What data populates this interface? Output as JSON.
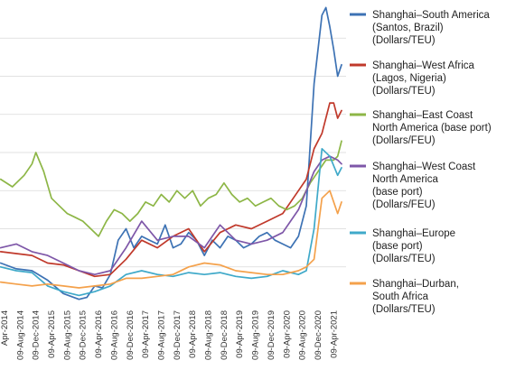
{
  "chart_data": {
    "type": "line",
    "title": "",
    "xlabel": "",
    "ylabel": "",
    "grid": true,
    "legend_position": "right",
    "x_ticks": [
      "09-Apr-2014",
      "09-Aug-2014",
      "09-Dec-2014",
      "09-Apr-2015",
      "09-Aug-2015",
      "09-Dec-2015",
      "09-Apr-2016",
      "09-Aug-2016",
      "09-Dec-2016",
      "09-Apr-2017",
      "09-Aug-2017",
      "09-Dec-2017",
      "09-Apr-2018",
      "09-Aug-2018",
      "09-Dec-2018",
      "09-Apr-2019",
      "09-Aug-2019",
      "09-Dec-2019",
      "09-Apr-2020",
      "09-Aug-2020",
      "09-Dec-2020",
      "09-Apr-2021"
    ],
    "x_tick_labels": [
      "Apr-2014",
      "09-Aug-2014",
      "09-Dec-2014",
      "09-Apr-2015",
      "09-Aug-2015",
      "09-Dec-2015",
      "09-Apr-2016",
      "09-Aug-2016",
      "09-Dec-2016",
      "09-Apr-2017",
      "09-Aug-2017",
      "09-Dec-2017",
      "09-Apr-2018",
      "09-Aug-2018",
      "09-Dec-2018",
      "09-Apr-2019",
      "09-Aug-2019",
      "09-Dec-2019",
      "09-Apr-2020",
      "09-Aug-2020",
      "09-Dec-2020",
      "09-Apr-2021"
    ],
    "x_end": "09-Jun-2021",
    "ylim": [
      0,
      8000
    ],
    "series": [
      {
        "name": "Shanghai–South America (Santos, Brazil) (Dollars/TEU)",
        "legend_lines": [
          "Shanghai–South America",
          "(Santos, Brazil)",
          "(Dollars/TEU)"
        ],
        "color": "#3d72b4",
        "x": [
          "2014-03",
          "2014-07",
          "2014-11",
          "2015-03",
          "2015-07",
          "2015-11",
          "2016-01",
          "2016-03",
          "2016-05",
          "2016-07",
          "2016-09",
          "2016-11",
          "2017-01",
          "2017-03",
          "2017-05",
          "2017-07",
          "2017-09",
          "2017-11",
          "2018-01",
          "2018-03",
          "2018-05",
          "2018-07",
          "2018-09",
          "2018-11",
          "2019-01",
          "2019-03",
          "2019-05",
          "2019-07",
          "2019-09",
          "2019-11",
          "2020-01",
          "2020-03",
          "2020-05",
          "2020-07",
          "2020-09",
          "2020-11",
          "2021-01",
          "2021-02",
          "2021-03",
          "2021-04",
          "2021-05",
          "2021-06"
        ],
        "values": [
          1100,
          950,
          900,
          650,
          300,
          150,
          200,
          500,
          450,
          800,
          1700,
          2000,
          1500,
          1800,
          1700,
          1600,
          2100,
          1500,
          1600,
          1900,
          1700,
          1300,
          1700,
          1500,
          1800,
          1700,
          1500,
          1600,
          1800,
          1900,
          1700,
          1600,
          1500,
          1800,
          2600,
          5800,
          7600,
          7800,
          7300,
          6700,
          6000,
          6300
        ]
      },
      {
        "name": "Shanghai–West Africa (Lagos, Nigeria) (Dollars/TEU)",
        "legend_lines": [
          "Shanghai–West Africa",
          "(Lagos, Nigeria)",
          "(Dollars/TEU)"
        ],
        "color": "#c0392b",
        "x": [
          "2014-03",
          "2014-07",
          "2014-11",
          "2015-03",
          "2015-07",
          "2015-11",
          "2016-03",
          "2016-07",
          "2016-11",
          "2017-03",
          "2017-07",
          "2017-11",
          "2018-03",
          "2018-07",
          "2018-11",
          "2019-03",
          "2019-07",
          "2019-11",
          "2020-03",
          "2020-07",
          "2020-09",
          "2020-11",
          "2021-01",
          "2021-03",
          "2021-04",
          "2021-05",
          "2021-06"
        ],
        "values": [
          1400,
          1350,
          1300,
          1100,
          1050,
          900,
          750,
          800,
          1200,
          1700,
          1500,
          1800,
          2000,
          1400,
          1900,
          2100,
          2000,
          2200,
          2400,
          3000,
          3300,
          4100,
          4500,
          5300,
          5300,
          4900,
          5100
        ]
      },
      {
        "name": "Shanghai–East Coast North America (base port) (Dollars/FEU)",
        "legend_lines": [
          "Shanghai–East Coast",
          "North America (base port)",
          "(Dollars/FEU)"
        ],
        "color": "#8db646",
        "x": [
          "2014-03",
          "2014-06",
          "2014-09",
          "2014-11",
          "2014-12",
          "2015-02",
          "2015-04",
          "2015-06",
          "2015-08",
          "2015-10",
          "2015-12",
          "2016-02",
          "2016-04",
          "2016-06",
          "2016-08",
          "2016-10",
          "2016-12",
          "2017-02",
          "2017-04",
          "2017-06",
          "2017-08",
          "2017-10",
          "2017-12",
          "2018-02",
          "2018-04",
          "2018-06",
          "2018-08",
          "2018-10",
          "2018-12",
          "2019-02",
          "2019-04",
          "2019-06",
          "2019-08",
          "2019-10",
          "2019-12",
          "2020-02",
          "2020-04",
          "2020-06",
          "2020-08",
          "2020-10",
          "2020-12",
          "2021-02",
          "2021-04",
          "2021-05",
          "2021-06"
        ],
        "values": [
          3300,
          3100,
          3400,
          3700,
          4000,
          3500,
          2800,
          2600,
          2400,
          2300,
          2200,
          2000,
          1800,
          2200,
          2500,
          2400,
          2200,
          2400,
          2700,
          2600,
          2900,
          2700,
          3000,
          2800,
          3000,
          2600,
          2800,
          2900,
          3200,
          2900,
          2700,
          2800,
          2600,
          2700,
          2800,
          2600,
          2500,
          2600,
          2800,
          3200,
          3500,
          3800,
          3800,
          3900,
          4300
        ]
      },
      {
        "name": "Shanghai–West Coast North America (base port) (Dollars/FEU)",
        "legend_lines": [
          "Shanghai–West Coast",
          "North America",
          "(base port)",
          "(Dollars/FEU)"
        ],
        "color": "#7e57a8",
        "x": [
          "2014-03",
          "2014-07",
          "2014-11",
          "2015-03",
          "2015-07",
          "2015-11",
          "2016-03",
          "2016-07",
          "2016-11",
          "2017-03",
          "2017-07",
          "2017-11",
          "2018-03",
          "2018-07",
          "2018-11",
          "2019-03",
          "2019-07",
          "2019-11",
          "2020-03",
          "2020-07",
          "2020-09",
          "2020-11",
          "2021-01",
          "2021-03",
          "2021-05",
          "2021-06"
        ],
        "values": [
          1500,
          1600,
          1400,
          1300,
          1100,
          900,
          800,
          900,
          1500,
          2200,
          1700,
          1800,
          1800,
          1500,
          2100,
          1700,
          1600,
          1700,
          1900,
          2500,
          3000,
          3500,
          3800,
          3900,
          3800,
          3700
        ]
      },
      {
        "name": "Shanghai–Europe (base port) (Dollars/TEU)",
        "legend_lines": [
          "Shanghai–Europe",
          "(base port)",
          "(Dollars/TEU)"
        ],
        "color": "#3fa9c9",
        "x": [
          "2014-03",
          "2014-07",
          "2014-11",
          "2015-03",
          "2015-07",
          "2015-11",
          "2016-03",
          "2016-07",
          "2016-11",
          "2017-03",
          "2017-07",
          "2017-11",
          "2018-03",
          "2018-07",
          "2018-11",
          "2019-03",
          "2019-07",
          "2019-11",
          "2020-03",
          "2020-07",
          "2020-09",
          "2020-11",
          "2021-01",
          "2021-03",
          "2021-05",
          "2021-06"
        ],
        "values": [
          1000,
          900,
          850,
          500,
          350,
          250,
          350,
          500,
          800,
          900,
          800,
          750,
          850,
          800,
          850,
          750,
          700,
          750,
          900,
          800,
          900,
          2000,
          4100,
          3900,
          3400,
          3600
        ]
      },
      {
        "name": "Shanghai–Durban, South Africa (Dollars/TEU)",
        "legend_lines": [
          "Shanghai–Durban,",
          "South Africa",
          "(Dollars/TEU)"
        ],
        "color": "#f4a14b",
        "x": [
          "2014-03",
          "2014-07",
          "2014-11",
          "2015-03",
          "2015-07",
          "2015-11",
          "2016-03",
          "2016-07",
          "2016-11",
          "2017-03",
          "2017-07",
          "2017-11",
          "2018-03",
          "2018-07",
          "2018-11",
          "2019-03",
          "2019-07",
          "2019-11",
          "2020-03",
          "2020-07",
          "2020-09",
          "2020-11",
          "2021-01",
          "2021-03",
          "2021-05",
          "2021-06"
        ],
        "values": [
          600,
          550,
          500,
          550,
          500,
          450,
          500,
          550,
          700,
          700,
          750,
          800,
          1000,
          1100,
          1050,
          900,
          850,
          800,
          800,
          900,
          1000,
          1200,
          2800,
          3000,
          2400,
          2700
        ]
      }
    ]
  }
}
